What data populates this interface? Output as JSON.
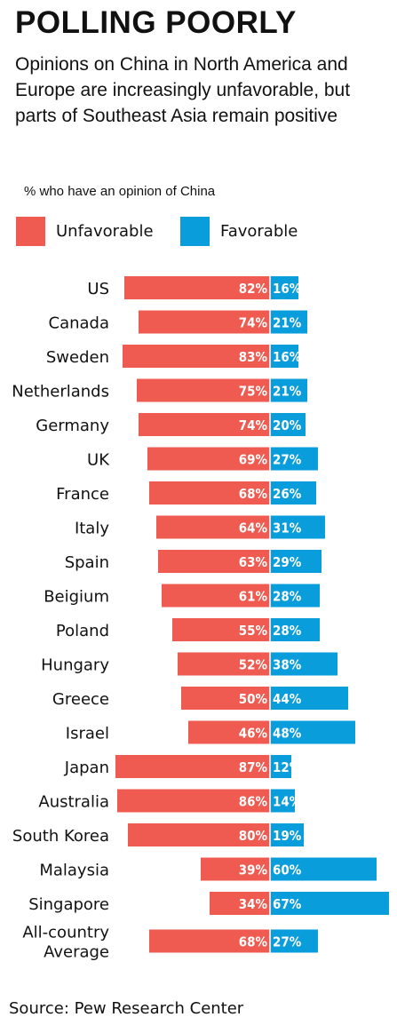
{
  "header": {
    "title": "POLLING POORLY",
    "subtitle": "Opinions on China in North America and Europe are increasingly unfavorable, but parts of Southeast Asia remain positive",
    "measure_label": "% who have an opinion of China"
  },
  "legend": {
    "unfavorable": "Unfavorable",
    "favorable": "Favorable"
  },
  "colors": {
    "unfavorable": "#ef5b50",
    "favorable": "#0a9ddb"
  },
  "source": "Source: Pew Research Center",
  "chart_data": {
    "type": "bar",
    "orientation": "horizontal-diverging",
    "unit": "%",
    "categories": [
      "US",
      "Canada",
      "Sweden",
      "Netherlands",
      "Germany",
      "UK",
      "France",
      "Italy",
      "Spain",
      "Beigium",
      "Poland",
      "Hungary",
      "Greece",
      "Israel",
      "Japan",
      "Australia",
      "South Korea",
      "Malaysia",
      "Singapore",
      "All-country Average"
    ],
    "series": [
      {
        "name": "Unfavorable",
        "values": [
          82,
          74,
          83,
          75,
          74,
          69,
          68,
          64,
          63,
          61,
          55,
          52,
          50,
          46,
          87,
          86,
          80,
          39,
          34,
          68
        ]
      },
      {
        "name": "Favorable",
        "values": [
          16,
          21,
          16,
          21,
          20,
          27,
          26,
          31,
          29,
          28,
          28,
          38,
          44,
          48,
          12,
          14,
          19,
          60,
          67,
          27
        ]
      }
    ],
    "value_labels": {
      "unfavorable": [
        "82%",
        "74%",
        "83%",
        "75%",
        "74%",
        "69%",
        "68%",
        "64%",
        "63%",
        "61%",
        "55%",
        "52%",
        "50%",
        "46%",
        "87%",
        "86%",
        "80%",
        "39%",
        "34%",
        "68%"
      ],
      "favorable": [
        "16%",
        "21%",
        "16%",
        "21%",
        "20%",
        "27%",
        "26%",
        "31%",
        "29%",
        "28%",
        "28%",
        "38%",
        "44%",
        "48%",
        "12%",
        "14%",
        "19%",
        "60%",
        "67%",
        "27%"
      ]
    }
  }
}
